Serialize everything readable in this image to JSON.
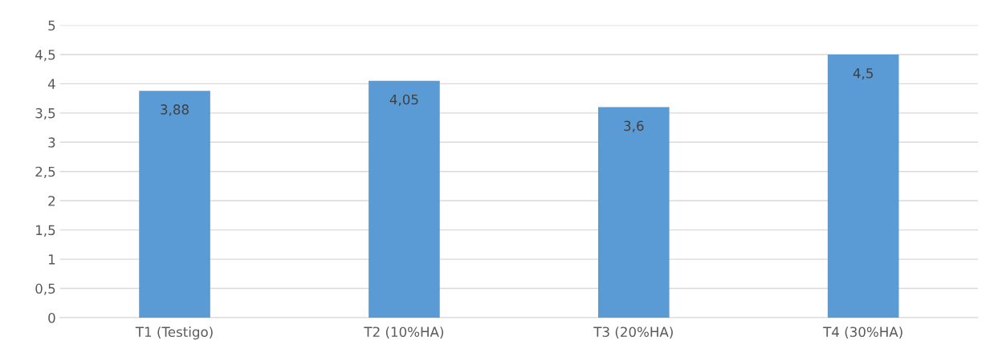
{
  "chart_data": {
    "type": "bar",
    "categories": [
      "T1 (Testigo)",
      "T2 (10%HA)",
      "T3 (20%HA)",
      "T4 (30%HA)"
    ],
    "values": [
      3.88,
      4.05,
      3.6,
      4.5
    ],
    "value_labels": [
      "3,88",
      "4,05",
      "3,6",
      "4,5"
    ],
    "color": "#5b9bd5",
    "ylim": [
      0,
      5
    ],
    "yticks": [
      0,
      {
        "value": 0.5,
        "label": "0,5"
      },
      1,
      {
        "value": 1.5,
        "label": "1,5"
      },
      2,
      {
        "value": 2.5,
        "label": "2,5"
      },
      3,
      {
        "value": 3.5,
        "label": "3,5"
      },
      4,
      {
        "value": 4.5,
        "label": "4,5"
      },
      5
    ],
    "grid": "y"
  }
}
